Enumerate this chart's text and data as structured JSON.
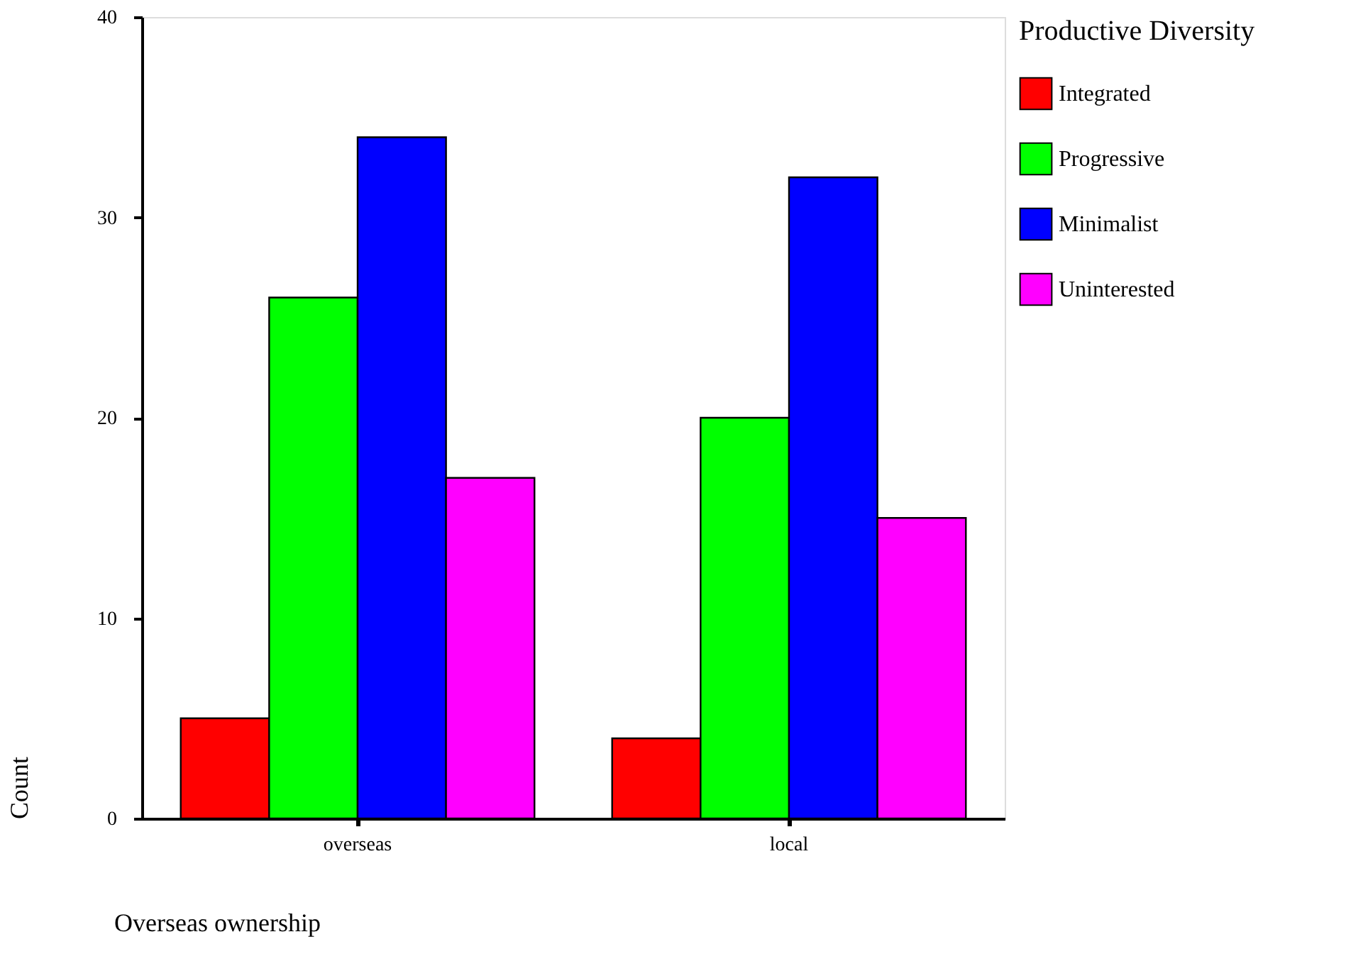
{
  "chart_data": {
    "type": "bar",
    "xlabel": "Overseas ownership",
    "ylabel": "Count",
    "legend_title": "Productive Diversity",
    "categories": [
      "overseas",
      "local"
    ],
    "series": [
      {
        "name": "Integrated",
        "color": "#ff0000",
        "values": [
          5,
          4
        ]
      },
      {
        "name": "Progressive",
        "color": "#00ff00",
        "values": [
          26,
          20
        ]
      },
      {
        "name": "Minimalist",
        "color": "#0000ff",
        "values": [
          34,
          32
        ]
      },
      {
        "name": "Uninterested",
        "color": "#ff00ff",
        "values": [
          17,
          15
        ]
      }
    ],
    "ylim": [
      0,
      40
    ],
    "yticks": [
      0,
      10,
      20,
      30,
      40
    ],
    "grid": false,
    "legend": "right"
  }
}
